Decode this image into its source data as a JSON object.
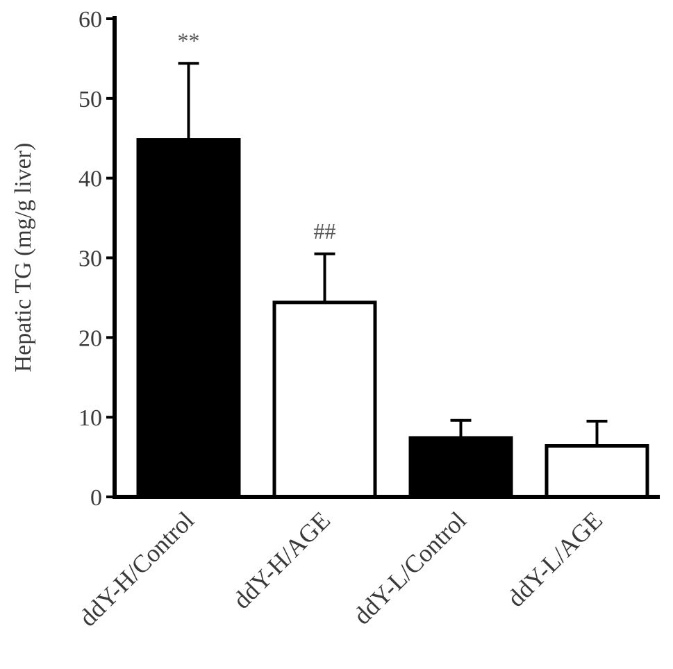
{
  "chart_data": {
    "type": "bar",
    "title": "",
    "xlabel": "",
    "ylabel": "Hepatic TG (mg/g liver)",
    "ylim": [
      0,
      60
    ],
    "yticks": [
      0,
      10,
      20,
      30,
      40,
      50,
      60
    ],
    "grid": false,
    "categories": [
      "ddY-H/Control",
      "ddY-H/AGE",
      "ddY-L/Control",
      "ddY-L/AGE"
    ],
    "values": [
      44.8,
      24.4,
      7.4,
      6.4
    ],
    "errors": [
      9.6,
      6.1,
      2.2,
      3.1
    ],
    "bar_fills": [
      "#000000",
      "#ffffff",
      "#000000",
      "#ffffff"
    ],
    "annotations": [
      "**",
      "##",
      "",
      ""
    ]
  }
}
